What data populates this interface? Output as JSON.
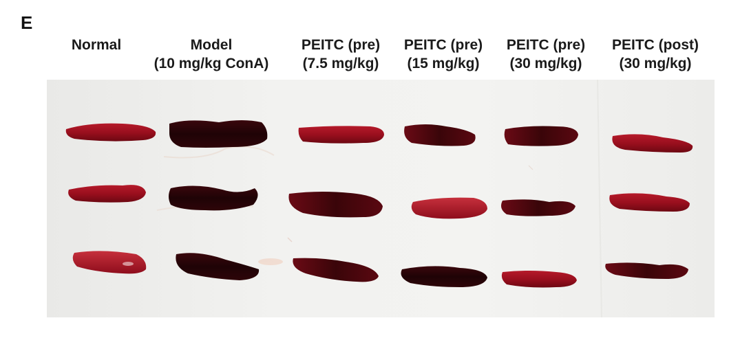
{
  "panel_letter": "E",
  "groups": [
    {
      "line1": "",
      "line2": "Normal"
    },
    {
      "line1": "Model",
      "line2": "(10 mg/kg ConA)"
    },
    {
      "line1": "PEITC (pre)",
      "line2": "(7.5 mg/kg)"
    },
    {
      "line1": "PEITC (pre)",
      "line2": "(15 mg/kg)"
    },
    {
      "line1": "PEITC (pre)",
      "line2": "(30 mg/kg)"
    },
    {
      "line1": "PEITC (post)",
      "line2": "(30 mg/kg)"
    }
  ],
  "colors": {
    "spleen_normal": "#a3101f",
    "spleen_dark": "#2a0508",
    "paper": "#f1f1ef"
  }
}
